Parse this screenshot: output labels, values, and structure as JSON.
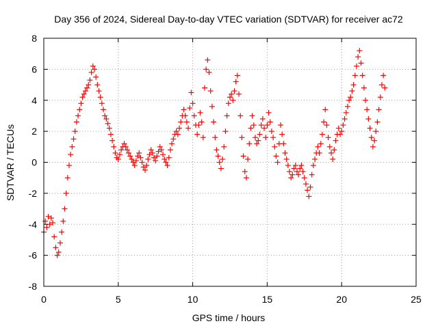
{
  "chart_data": {
    "type": "scatter",
    "title": "Day 356 of 2024, Sidereal Day-to-day VTEC variation (SDTVAR) for receiver ac72",
    "xlabel": "GPS time / hours",
    "ylabel": "SDTVAR / TECUs",
    "xlim": [
      0,
      25
    ],
    "ylim": [
      -8,
      8
    ],
    "xticks": [
      "0",
      "5",
      "10",
      "15",
      "20",
      "25"
    ],
    "xtick_values": [
      0,
      5,
      10,
      15,
      20,
      25
    ],
    "yticks": [
      "8",
      "6",
      "4",
      "2",
      "0",
      "-2",
      "-4",
      "-6",
      "-8"
    ],
    "ytick_values": [
      8,
      6,
      4,
      2,
      0,
      -2,
      -4,
      -6,
      -8
    ],
    "grid": true,
    "marker": "+",
    "color": "#ff0000",
    "series": [
      {
        "name": "SDTVAR",
        "points": [
          [
            0.0,
            -4.5
          ],
          [
            0.1,
            -3.8
          ],
          [
            0.2,
            -4.2
          ],
          [
            0.3,
            -3.5
          ],
          [
            0.4,
            -4.0
          ],
          [
            0.5,
            -3.6
          ],
          [
            0.6,
            -3.9
          ],
          [
            0.7,
            -4.8
          ],
          [
            0.8,
            -5.5
          ],
          [
            0.9,
            -6.0
          ],
          [
            1.0,
            -5.8
          ],
          [
            1.1,
            -5.2
          ],
          [
            1.2,
            -4.5
          ],
          [
            1.3,
            -3.8
          ],
          [
            1.4,
            -3.0
          ],
          [
            1.5,
            -2.0
          ],
          [
            1.6,
            -1.0
          ],
          [
            1.7,
            -0.2
          ],
          [
            1.8,
            0.5
          ],
          [
            1.9,
            1.0
          ],
          [
            2.0,
            1.5
          ],
          [
            2.1,
            2.0
          ],
          [
            2.2,
            2.6
          ],
          [
            2.3,
            3.0
          ],
          [
            2.4,
            3.4
          ],
          [
            2.5,
            3.8
          ],
          [
            2.6,
            4.2
          ],
          [
            2.7,
            4.4
          ],
          [
            2.8,
            4.6
          ],
          [
            2.9,
            4.8
          ],
          [
            3.0,
            5.0
          ],
          [
            3.1,
            5.3
          ],
          [
            3.2,
            5.8
          ],
          [
            3.3,
            6.2
          ],
          [
            3.4,
            6.0
          ],
          [
            3.5,
            5.5
          ],
          [
            3.6,
            5.0
          ],
          [
            3.7,
            4.6
          ],
          [
            3.8,
            4.2
          ],
          [
            3.9,
            3.8
          ],
          [
            4.0,
            3.4
          ],
          [
            4.1,
            3.0
          ],
          [
            4.2,
            2.8
          ],
          [
            4.3,
            2.5
          ],
          [
            4.4,
            2.2
          ],
          [
            4.5,
            1.8
          ],
          [
            4.6,
            1.4
          ],
          [
            4.7,
            1.0
          ],
          [
            4.8,
            0.6
          ],
          [
            4.9,
            0.3
          ],
          [
            5.0,
            0.2
          ],
          [
            5.1,
            0.5
          ],
          [
            5.2,
            0.8
          ],
          [
            5.3,
            1.0
          ],
          [
            5.4,
            1.2
          ],
          [
            5.5,
            1.0
          ],
          [
            5.6,
            0.8
          ],
          [
            5.7,
            0.6
          ],
          [
            5.8,
            0.4
          ],
          [
            5.9,
            0.2
          ],
          [
            6.0,
            0.0
          ],
          [
            6.1,
            -0.2
          ],
          [
            6.2,
            0.1
          ],
          [
            6.3,
            0.4
          ],
          [
            6.4,
            0.6
          ],
          [
            6.5,
            0.3
          ],
          [
            6.6,
            0.0
          ],
          [
            6.7,
            -0.3
          ],
          [
            6.8,
            -0.5
          ],
          [
            6.9,
            -0.2
          ],
          [
            7.0,
            0.2
          ],
          [
            7.1,
            0.5
          ],
          [
            7.2,
            0.8
          ],
          [
            7.3,
            0.6
          ],
          [
            7.4,
            0.3
          ],
          [
            7.5,
            0.1
          ],
          [
            7.6,
            0.4
          ],
          [
            7.7,
            0.7
          ],
          [
            7.8,
            1.0
          ],
          [
            7.9,
            0.8
          ],
          [
            8.0,
            0.5
          ],
          [
            8.1,
            0.2
          ],
          [
            8.2,
            0.0
          ],
          [
            8.3,
            -0.2
          ],
          [
            8.4,
            0.3
          ],
          [
            8.5,
            0.8
          ],
          [
            8.6,
            1.2
          ],
          [
            8.7,
            1.5
          ],
          [
            8.8,
            1.8
          ],
          [
            8.9,
            2.0
          ],
          [
            9.0,
            1.8
          ],
          [
            9.1,
            2.2
          ],
          [
            9.2,
            2.6
          ],
          [
            9.3,
            3.0
          ],
          [
            9.4,
            3.4
          ],
          [
            9.5,
            3.0
          ],
          [
            9.6,
            2.6
          ],
          [
            9.7,
            2.2
          ],
          [
            9.8,
            3.5
          ],
          [
            9.9,
            4.5
          ],
          [
            10.0,
            3.8
          ],
          [
            10.1,
            3.0
          ],
          [
            10.2,
            2.4
          ],
          [
            10.3,
            1.8
          ],
          [
            10.4,
            2.4
          ],
          [
            10.5,
            3.2
          ],
          [
            10.6,
            2.6
          ],
          [
            10.7,
            1.6
          ],
          [
            10.8,
            4.8
          ],
          [
            10.9,
            6.0
          ],
          [
            11.0,
            6.6
          ],
          [
            11.1,
            5.8
          ],
          [
            11.2,
            4.6
          ],
          [
            11.3,
            3.6
          ],
          [
            11.4,
            2.6
          ],
          [
            11.5,
            1.6
          ],
          [
            11.6,
            0.8
          ],
          [
            11.7,
            0.4
          ],
          [
            11.8,
            0.0
          ],
          [
            11.9,
            -0.4
          ],
          [
            12.0,
            0.2
          ],
          [
            12.1,
            1.0
          ],
          [
            12.2,
            2.0
          ],
          [
            12.3,
            3.0
          ],
          [
            12.4,
            3.8
          ],
          [
            12.5,
            4.2
          ],
          [
            12.6,
            4.4
          ],
          [
            12.7,
            4.0
          ],
          [
            12.8,
            4.6
          ],
          [
            12.9,
            5.2
          ],
          [
            13.0,
            5.6
          ],
          [
            13.1,
            4.4
          ],
          [
            13.2,
            3.0
          ],
          [
            13.3,
            1.6
          ],
          [
            13.4,
            0.4
          ],
          [
            13.5,
            -0.6
          ],
          [
            13.6,
            -1.0
          ],
          [
            13.7,
            0.2
          ],
          [
            13.8,
            1.2
          ],
          [
            13.9,
            2.2
          ],
          [
            14.0,
            3.0
          ],
          [
            14.1,
            2.4
          ],
          [
            14.2,
            1.6
          ],
          [
            14.3,
            1.2
          ],
          [
            14.4,
            1.4
          ],
          [
            14.5,
            1.8
          ],
          [
            14.6,
            2.4
          ],
          [
            14.7,
            2.8
          ],
          [
            14.8,
            2.2
          ],
          [
            14.9,
            1.6
          ],
          [
            15.0,
            2.4
          ],
          [
            15.1,
            3.2
          ],
          [
            15.2,
            2.6
          ],
          [
            15.3,
            2.0
          ],
          [
            15.4,
            1.6
          ],
          [
            15.5,
            1.0
          ],
          [
            15.6,
            0.4
          ],
          [
            15.7,
            0.0
          ],
          [
            15.8,
            1.2
          ],
          [
            15.9,
            2.4
          ],
          [
            16.0,
            1.8
          ],
          [
            16.1,
            1.2
          ],
          [
            16.2,
            0.6
          ],
          [
            16.3,
            0.2
          ],
          [
            16.4,
            -0.2
          ],
          [
            16.5,
            -0.6
          ],
          [
            16.6,
            -1.0
          ],
          [
            16.7,
            -0.8
          ],
          [
            16.8,
            -0.4
          ],
          [
            16.9,
            -0.2
          ],
          [
            17.0,
            -0.6
          ],
          [
            17.1,
            -0.8
          ],
          [
            17.2,
            -0.4
          ],
          [
            17.3,
            -0.2
          ],
          [
            17.4,
            -0.6
          ],
          [
            17.5,
            -1.0
          ],
          [
            17.6,
            -1.4
          ],
          [
            17.7,
            -1.8
          ],
          [
            17.8,
            -2.2
          ],
          [
            17.9,
            -1.6
          ],
          [
            18.0,
            -0.8
          ],
          [
            18.1,
            -0.2
          ],
          [
            18.2,
            0.2
          ],
          [
            18.3,
            0.6
          ],
          [
            18.4,
            1.0
          ],
          [
            18.5,
            0.6
          ],
          [
            18.6,
            1.2
          ],
          [
            18.7,
            1.8
          ],
          [
            18.8,
            2.6
          ],
          [
            18.9,
            3.4
          ],
          [
            19.0,
            2.4
          ],
          [
            19.1,
            1.6
          ],
          [
            19.2,
            1.0
          ],
          [
            19.3,
            0.6
          ],
          [
            19.4,
            0.2
          ],
          [
            19.5,
            0.8
          ],
          [
            19.6,
            1.4
          ],
          [
            19.7,
            1.8
          ],
          [
            19.8,
            2.2
          ],
          [
            19.9,
            1.8
          ],
          [
            20.0,
            2.0
          ],
          [
            20.1,
            2.4
          ],
          [
            20.2,
            2.8
          ],
          [
            20.3,
            3.2
          ],
          [
            20.4,
            3.6
          ],
          [
            20.5,
            4.0
          ],
          [
            20.6,
            4.2
          ],
          [
            20.7,
            4.6
          ],
          [
            20.8,
            5.0
          ],
          [
            20.9,
            5.6
          ],
          [
            21.0,
            6.2
          ],
          [
            21.1,
            6.8
          ],
          [
            21.2,
            7.2
          ],
          [
            21.3,
            6.4
          ],
          [
            21.4,
            5.6
          ],
          [
            21.5,
            4.8
          ],
          [
            21.6,
            4.0
          ],
          [
            21.7,
            3.4
          ],
          [
            21.8,
            2.8
          ],
          [
            21.9,
            2.2
          ],
          [
            22.0,
            1.6
          ],
          [
            22.1,
            1.0
          ],
          [
            22.2,
            1.4
          ],
          [
            22.3,
            2.0
          ],
          [
            22.4,
            2.6
          ],
          [
            22.5,
            3.4
          ],
          [
            22.6,
            4.2
          ],
          [
            22.7,
            5.0
          ],
          [
            22.8,
            5.6
          ],
          [
            22.9,
            4.8
          ]
        ]
      }
    ]
  }
}
